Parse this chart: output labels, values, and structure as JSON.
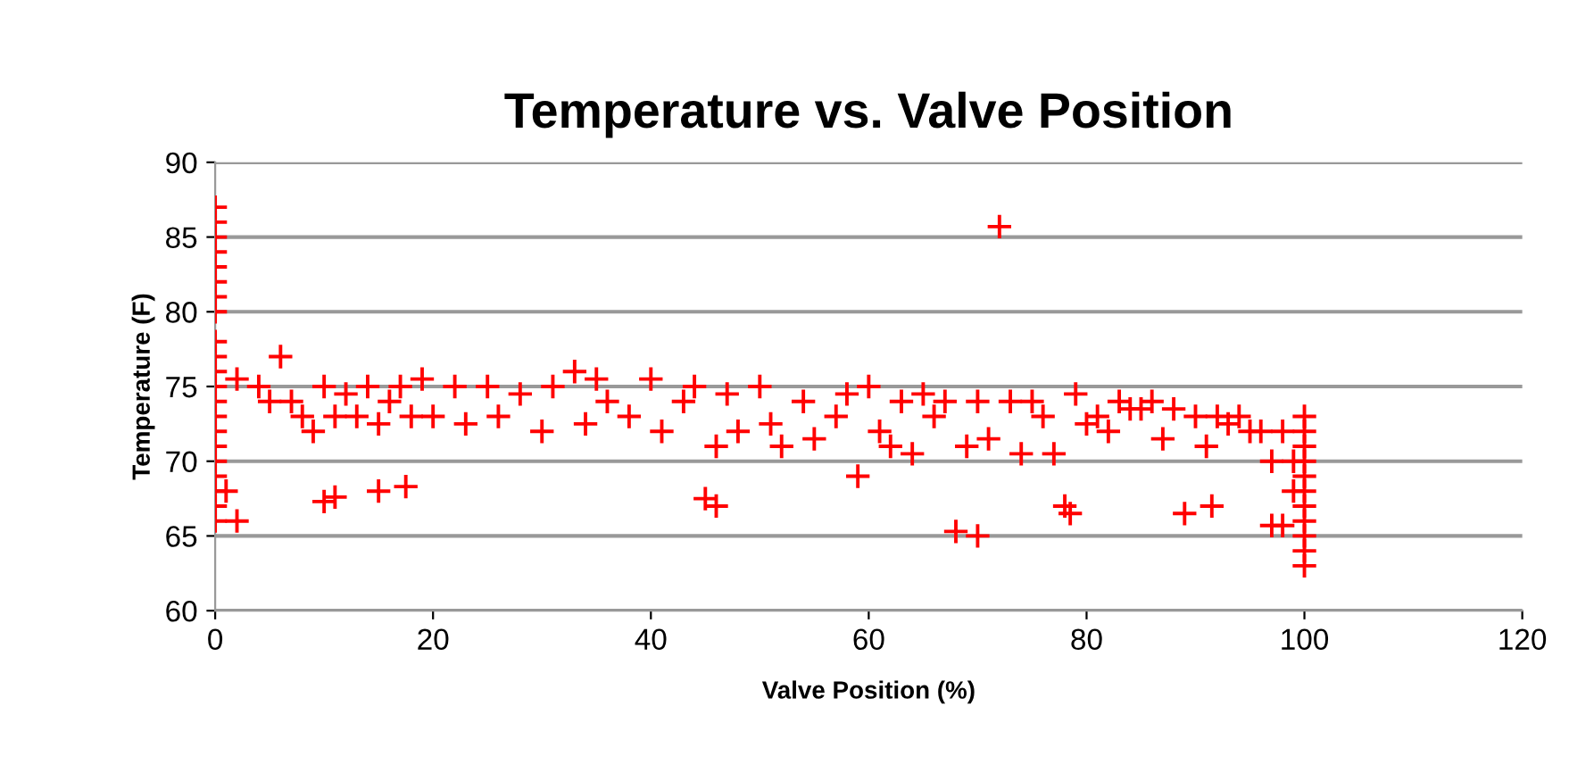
{
  "chart_data": {
    "type": "scatter",
    "title": "Temperature vs. Valve Position",
    "xlabel": "Valve Position (%)",
    "ylabel": "Temperature (F)",
    "xlim": [
      0,
      120
    ],
    "xticks": [
      0,
      20,
      40,
      60,
      80,
      100,
      120
    ],
    "ylim": [
      60,
      90
    ],
    "yticks": [
      60,
      65,
      70,
      75,
      80,
      85,
      90
    ],
    "grid": "y",
    "marker": "cross",
    "legend": false,
    "series": [
      {
        "color": "#ff0000",
        "x": [
          0,
          0,
          0,
          0,
          0,
          0,
          0,
          0,
          0,
          0,
          0,
          0,
          0,
          0,
          0,
          0,
          0,
          0,
          0,
          0,
          0,
          1,
          2,
          2,
          4,
          5,
          6,
          7,
          8,
          9,
          10,
          11,
          12,
          13,
          14,
          15,
          16,
          17,
          18,
          19,
          20,
          22,
          23,
          25,
          26,
          28,
          30,
          31,
          33,
          34,
          35,
          36,
          38,
          40,
          41,
          43,
          44,
          46,
          47,
          48,
          50,
          51,
          52,
          54,
          55,
          57,
          58,
          59,
          60,
          61,
          62,
          63,
          64,
          65,
          66,
          67,
          69,
          70,
          71,
          73,
          74,
          75,
          76,
          77,
          79,
          80,
          81,
          82,
          83,
          84,
          85,
          86,
          87,
          88,
          90,
          91,
          92,
          93,
          94,
          95,
          96,
          97,
          98,
          100,
          100,
          100,
          100,
          100,
          100,
          100,
          100,
          100,
          100,
          100,
          10,
          11,
          15,
          17.5,
          45,
          46,
          68,
          70,
          72,
          78,
          78.5,
          89,
          91.5,
          97,
          98,
          99,
          99
        ],
        "values": [
          87,
          86,
          85,
          84,
          83,
          82,
          81,
          80,
          78,
          77,
          76,
          75,
          74,
          73,
          72,
          71,
          70,
          69,
          68,
          67,
          66,
          68,
          66,
          75.5,
          75,
          74,
          77,
          74,
          73,
          72,
          75,
          73,
          74.5,
          73,
          75,
          72.5,
          74,
          75,
          73,
          75.5,
          73,
          75,
          72.5,
          75,
          73,
          74.5,
          72,
          75,
          76,
          72.5,
          75.5,
          74,
          73,
          75.5,
          72,
          74,
          75,
          71,
          74.5,
          72,
          75,
          72.5,
          71,
          74,
          71.5,
          73,
          74.5,
          69,
          75,
          72,
          71,
          74,
          70.5,
          74.5,
          73,
          74,
          71,
          74,
          71.5,
          74,
          70.5,
          74,
          73,
          70.5,
          74.5,
          72.5,
          73,
          72,
          74,
          73.5,
          73.5,
          74,
          71.5,
          73.5,
          73,
          71,
          73,
          72.5,
          73,
          72,
          72,
          70,
          72,
          73,
          72,
          71,
          70,
          69,
          68,
          67,
          66,
          65,
          64,
          63,
          67.3,
          67.6,
          68,
          68.3,
          67.5,
          67,
          65.3,
          65,
          85.7,
          67,
          66.5,
          66.5,
          67,
          65.7,
          65.7,
          68,
          70
        ]
      }
    ]
  }
}
